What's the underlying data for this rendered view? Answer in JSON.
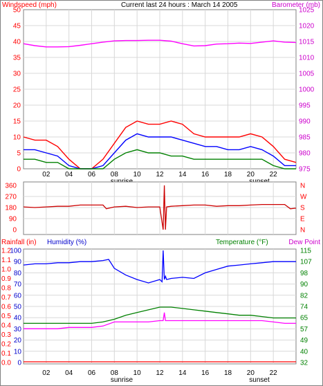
{
  "title": "Current last 24 hours : March 14 2005",
  "x_ticks": [
    "02",
    "04",
    "06",
    "08",
    "10",
    "12",
    "14",
    "16",
    "18",
    "20",
    "22"
  ],
  "sunrise_label": "sunrise",
  "sunset_label": "sunset",
  "colors": {
    "red": "#ff0000",
    "blue": "#0000ff",
    "green": "#008000",
    "magenta": "#ff00ff",
    "darkred": "#cc0000",
    "grid": "#d8d8d8",
    "frame": "#808080"
  },
  "chart_data": [
    {
      "type": "line",
      "left_label": "Windspeed (mph)",
      "right_label": "Barometer (mb)",
      "left_ticks": [
        "0",
        "5",
        "10",
        "15",
        "20",
        "25",
        "30",
        "35",
        "40",
        "45",
        "50"
      ],
      "right_ticks": [
        "975",
        "980",
        "985",
        "990",
        "995",
        "1000",
        "1005",
        "1010",
        "1015",
        "1020",
        "1025"
      ],
      "ylim_left": [
        0,
        50
      ],
      "ylim_right": [
        975,
        1025
      ],
      "x_hours": [
        0,
        1,
        2,
        3,
        4,
        5,
        6,
        7,
        8,
        9,
        10,
        11,
        12,
        13,
        14,
        15,
        16,
        17,
        18,
        19,
        20,
        21,
        22,
        23,
        24
      ],
      "series": [
        {
          "color": "red",
          "values": [
            10,
            9,
            9,
            7,
            3,
            0,
            0,
            3,
            8,
            13,
            15,
            14,
            14,
            15,
            14,
            11,
            10,
            10,
            10,
            10,
            11,
            10,
            7,
            3,
            2
          ]
        },
        {
          "color": "blue",
          "values": [
            6,
            6,
            5,
            4,
            1,
            0,
            0,
            1,
            5,
            9,
            11,
            10,
            10,
            10,
            9,
            8,
            7,
            7,
            6,
            6,
            7,
            6,
            4,
            1,
            1
          ]
        },
        {
          "color": "green",
          "values": [
            3,
            3,
            2,
            2,
            0,
            0,
            0,
            0,
            3,
            5,
            6,
            5,
            5,
            4,
            4,
            3,
            3,
            3,
            3,
            3,
            3,
            3,
            1,
            0,
            0
          ]
        },
        {
          "color": "magenta",
          "axis": "right",
          "values": [
            1014.3,
            1013.7,
            1013.3,
            1013.3,
            1013.4,
            1013.8,
            1014.3,
            1014.8,
            1015.2,
            1015.3,
            1015.3,
            1015.4,
            1015.4,
            1015.1,
            1014.3,
            1013.6,
            1013.7,
            1014.2,
            1014.3,
            1014.5,
            1014.4,
            1014.8,
            1015.2,
            1014.8,
            1014.7
          ]
        }
      ]
    },
    {
      "type": "line",
      "left_ticks": [
        "0",
        "90",
        "180",
        "270",
        "360"
      ],
      "right_ticks": [
        "N",
        "E",
        "S",
        "W",
        "N"
      ],
      "ylim": [
        0,
        360
      ],
      "x_hours": [
        0,
        1,
        2,
        3,
        4,
        5,
        6,
        7,
        7.3,
        8,
        9,
        10,
        11,
        12,
        12.3,
        12.4,
        12.5,
        12.6,
        13,
        14,
        15,
        16,
        17,
        18,
        19,
        20,
        21,
        22,
        23,
        23.5,
        24
      ],
      "series": [
        {
          "color": "darkred",
          "values": [
            185,
            180,
            185,
            190,
            190,
            200,
            200,
            200,
            170,
            185,
            190,
            180,
            185,
            185,
            0,
            360,
            0,
            185,
            190,
            195,
            200,
            200,
            190,
            195,
            195,
            200,
            205,
            205,
            205,
            170,
            175
          ]
        }
      ]
    },
    {
      "type": "line",
      "left_outer_label": "Rainfall (in)",
      "left_inner_label": "Humidity (%)",
      "right_label_1": "Temperature (°F)",
      "right_label_2": "Dew Point",
      "rain_ticks": [
        "0.0",
        "0.1",
        "0.2",
        "0.3",
        "0.4",
        "0.5",
        "0.6",
        "0.7",
        "0.8",
        "0.9",
        "1.0",
        "1.1",
        "1.2"
      ],
      "humidity_ticks": [
        "0",
        "10",
        "20",
        "30",
        "40",
        "50",
        "60",
        "70",
        "80",
        "90",
        "100"
      ],
      "temp_ticks": [
        "32",
        "40",
        "49",
        "57",
        "65",
        "74",
        "82",
        "90",
        "98",
        "107",
        "115"
      ],
      "ylim_humidity": [
        0,
        100
      ],
      "ylim_temp": [
        32,
        115
      ],
      "series": [
        {
          "name": "Humidity",
          "color": "blue",
          "x": [
            0,
            1,
            2,
            3,
            4,
            5,
            6,
            7,
            7.5,
            8,
            9,
            10,
            11,
            12,
            12.2,
            12.3,
            12.4,
            12.5,
            12.6,
            13,
            14,
            15,
            16,
            17,
            18,
            19,
            20,
            21,
            22,
            23,
            24
          ],
          "values": [
            87,
            88,
            88,
            89,
            89,
            90,
            90,
            91,
            92,
            84,
            78,
            74,
            71,
            74,
            72,
            100,
            74,
            77,
            74,
            75,
            76,
            75,
            80,
            83,
            86,
            87,
            88,
            89,
            90,
            90,
            90
          ]
        },
        {
          "name": "Temperature",
          "color": "green",
          "x": [
            0,
            1,
            2,
            3,
            4,
            5,
            6,
            7,
            8,
            9,
            10,
            11,
            12,
            13,
            14,
            15,
            16,
            17,
            18,
            19,
            20,
            21,
            22,
            23,
            24
          ],
          "values": [
            61,
            61,
            61,
            61,
            61,
            61,
            61,
            62,
            64,
            67,
            69,
            71,
            73,
            73,
            72,
            71,
            70,
            69,
            68,
            67,
            67,
            66,
            65,
            65,
            65
          ]
        },
        {
          "name": "Dew Point",
          "color": "magenta",
          "x": [
            0,
            1,
            2,
            3,
            4,
            5,
            6,
            7,
            8,
            9,
            10,
            11,
            12,
            12.3,
            12.4,
            12.5,
            13,
            14,
            15,
            16,
            17,
            18,
            19,
            20,
            21,
            22,
            23,
            24
          ],
          "values": [
            57,
            57,
            57,
            57,
            58,
            58,
            58,
            59,
            62,
            62,
            62,
            62,
            63,
            63,
            69,
            63,
            63,
            63,
            63,
            63,
            63,
            63,
            63,
            63,
            63,
            62,
            61,
            61
          ]
        },
        {
          "name": "Rainfall",
          "color": "red",
          "x": [
            0,
            24
          ],
          "values": [
            0.0,
            0.0
          ]
        }
      ]
    }
  ]
}
